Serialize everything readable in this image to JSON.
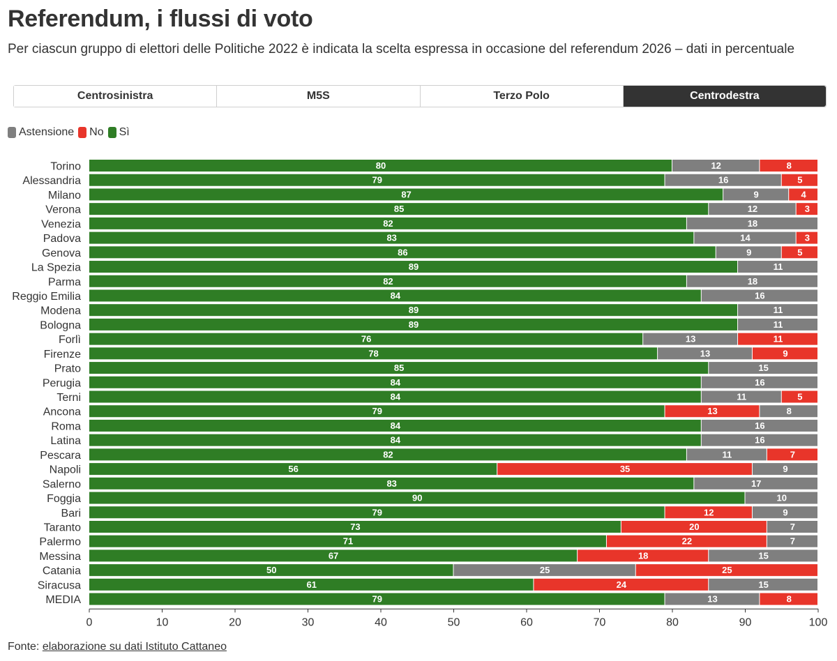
{
  "header": {
    "title": "Referendum, i flussi di voto",
    "subtitle": "Per ciascun gruppo di elettori delle Politiche 2022 è indicata la scelta espressa in occasione del referendum 2026 – dati in percentuale"
  },
  "tabs": [
    {
      "label": "Centrosinistra",
      "active": false
    },
    {
      "label": "M5S",
      "active": false
    },
    {
      "label": "Terzo Polo",
      "active": false
    },
    {
      "label": "Centrodestra",
      "active": true
    }
  ],
  "legend": [
    {
      "label": "Astensione",
      "color": "#7f7f7f"
    },
    {
      "label": "No",
      "color": "#e8352a"
    },
    {
      "label": "Sì",
      "color": "#2f7d25"
    }
  ],
  "source": {
    "prefix": "Fonte:",
    "link_text": "elaborazione su dati Istituto Cattaneo"
  },
  "chart_data": {
    "type": "bar",
    "orientation": "horizontal",
    "stacked": true,
    "xlim": [
      0,
      100
    ],
    "xticks": [
      0,
      10,
      20,
      30,
      40,
      50,
      60,
      70,
      80,
      90,
      100
    ],
    "categories": [
      "Torino",
      "Alessandria",
      "Milano",
      "Verona",
      "Venezia",
      "Padova",
      "Genova",
      "La Spezia",
      "Parma",
      "Reggio Emilia",
      "Modena",
      "Bologna",
      "Forlì",
      "Firenze",
      "Prato",
      "Perugia",
      "Terni",
      "Ancona",
      "Roma",
      "Latina",
      "Pescara",
      "Napoli",
      "Salerno",
      "Foggia",
      "Bari",
      "Taranto",
      "Palermo",
      "Messina",
      "Catania",
      "Siracusa",
      "MEDIA"
    ],
    "rows": [
      {
        "segments": [
          {
            "key": "si",
            "value": 80
          },
          {
            "key": "ast",
            "value": 12
          },
          {
            "key": "no",
            "value": 8
          }
        ]
      },
      {
        "segments": [
          {
            "key": "si",
            "value": 79
          },
          {
            "key": "ast",
            "value": 16
          },
          {
            "key": "no",
            "value": 5
          }
        ]
      },
      {
        "segments": [
          {
            "key": "si",
            "value": 87
          },
          {
            "key": "ast",
            "value": 9
          },
          {
            "key": "no",
            "value": 4
          }
        ]
      },
      {
        "segments": [
          {
            "key": "si",
            "value": 85
          },
          {
            "key": "ast",
            "value": 12
          },
          {
            "key": "no",
            "value": 3
          }
        ]
      },
      {
        "segments": [
          {
            "key": "si",
            "value": 82
          },
          {
            "key": "ast",
            "value": 18
          }
        ]
      },
      {
        "segments": [
          {
            "key": "si",
            "value": 83
          },
          {
            "key": "ast",
            "value": 14
          },
          {
            "key": "no",
            "value": 3
          }
        ]
      },
      {
        "segments": [
          {
            "key": "si",
            "value": 86
          },
          {
            "key": "ast",
            "value": 9
          },
          {
            "key": "no",
            "value": 5
          }
        ]
      },
      {
        "segments": [
          {
            "key": "si",
            "value": 89
          },
          {
            "key": "ast",
            "value": 11
          }
        ]
      },
      {
        "segments": [
          {
            "key": "si",
            "value": 82
          },
          {
            "key": "ast",
            "value": 18
          }
        ]
      },
      {
        "segments": [
          {
            "key": "si",
            "value": 84
          },
          {
            "key": "ast",
            "value": 16
          }
        ]
      },
      {
        "segments": [
          {
            "key": "si",
            "value": 89
          },
          {
            "key": "ast",
            "value": 11
          }
        ]
      },
      {
        "segments": [
          {
            "key": "si",
            "value": 89
          },
          {
            "key": "ast",
            "value": 11
          }
        ]
      },
      {
        "segments": [
          {
            "key": "si",
            "value": 76
          },
          {
            "key": "ast",
            "value": 13
          },
          {
            "key": "no",
            "value": 11
          }
        ]
      },
      {
        "segments": [
          {
            "key": "si",
            "value": 78
          },
          {
            "key": "ast",
            "value": 13
          },
          {
            "key": "no",
            "value": 9
          }
        ]
      },
      {
        "segments": [
          {
            "key": "si",
            "value": 85
          },
          {
            "key": "ast",
            "value": 15
          }
        ]
      },
      {
        "segments": [
          {
            "key": "si",
            "value": 84
          },
          {
            "key": "ast",
            "value": 16
          }
        ]
      },
      {
        "segments": [
          {
            "key": "si",
            "value": 84
          },
          {
            "key": "ast",
            "value": 11
          },
          {
            "key": "no",
            "value": 5
          }
        ]
      },
      {
        "segments": [
          {
            "key": "si",
            "value": 79
          },
          {
            "key": "no",
            "value": 13
          },
          {
            "key": "ast",
            "value": 8
          }
        ]
      },
      {
        "segments": [
          {
            "key": "si",
            "value": 84
          },
          {
            "key": "ast",
            "value": 16
          }
        ]
      },
      {
        "segments": [
          {
            "key": "si",
            "value": 84
          },
          {
            "key": "ast",
            "value": 16
          }
        ]
      },
      {
        "segments": [
          {
            "key": "si",
            "value": 82
          },
          {
            "key": "ast",
            "value": 11
          },
          {
            "key": "no",
            "value": 7
          }
        ]
      },
      {
        "segments": [
          {
            "key": "si",
            "value": 56
          },
          {
            "key": "no",
            "value": 35
          },
          {
            "key": "ast",
            "value": 9
          }
        ]
      },
      {
        "segments": [
          {
            "key": "si",
            "value": 83
          },
          {
            "key": "ast",
            "value": 17
          }
        ]
      },
      {
        "segments": [
          {
            "key": "si",
            "value": 90
          },
          {
            "key": "ast",
            "value": 10
          }
        ]
      },
      {
        "segments": [
          {
            "key": "si",
            "value": 79
          },
          {
            "key": "no",
            "value": 12
          },
          {
            "key": "ast",
            "value": 9
          }
        ]
      },
      {
        "segments": [
          {
            "key": "si",
            "value": 73
          },
          {
            "key": "no",
            "value": 20
          },
          {
            "key": "ast",
            "value": 7
          }
        ]
      },
      {
        "segments": [
          {
            "key": "si",
            "value": 71
          },
          {
            "key": "no",
            "value": 22
          },
          {
            "key": "ast",
            "value": 7
          }
        ]
      },
      {
        "segments": [
          {
            "key": "si",
            "value": 67
          },
          {
            "key": "no",
            "value": 18
          },
          {
            "key": "ast",
            "value": 15
          }
        ]
      },
      {
        "segments": [
          {
            "key": "si",
            "value": 50
          },
          {
            "key": "ast",
            "value": 25
          },
          {
            "key": "no",
            "value": 25
          }
        ]
      },
      {
        "segments": [
          {
            "key": "si",
            "value": 61
          },
          {
            "key": "no",
            "value": 24
          },
          {
            "key": "ast",
            "value": 15
          }
        ]
      },
      {
        "segments": [
          {
            "key": "si",
            "value": 79
          },
          {
            "key": "ast",
            "value": 13
          },
          {
            "key": "no",
            "value": 8
          }
        ]
      }
    ],
    "series_colors": {
      "si": "#2f7d25",
      "no": "#e8352a",
      "ast": "#7f7f7f"
    },
    "grid": false,
    "legend_position": "top-left"
  }
}
